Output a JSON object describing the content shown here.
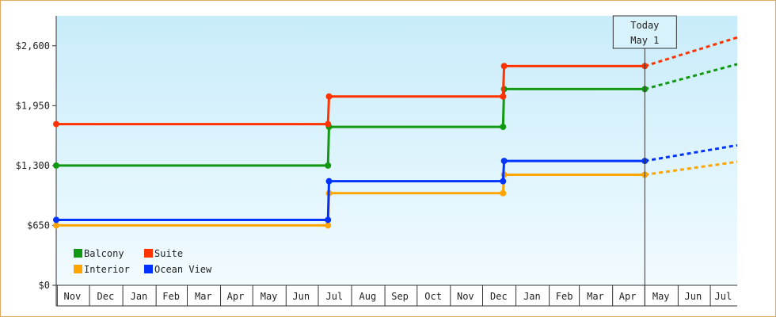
{
  "chart_data": {
    "type": "line",
    "step": true,
    "title": "",
    "xlabel": "",
    "ylabel": "",
    "ylim": [
      0,
      2925
    ],
    "yticks": [
      0,
      650,
      1300,
      1950,
      2600
    ],
    "ytick_labels": [
      "$0",
      "$650",
      "$1,300",
      "$1,950",
      "$2,600"
    ],
    "x_range": [
      "2023-10-31",
      "2025-07-26"
    ],
    "month_labels": [
      "Nov",
      "Dec",
      "Jan",
      "Feb",
      "Mar",
      "Apr",
      "May",
      "Jun",
      "Jul",
      "Aug",
      "Sep",
      "Oct",
      "Nov",
      "Dec",
      "Jan",
      "Feb",
      "Mar",
      "Apr",
      "May",
      "Jun",
      "Jul"
    ],
    "month_starts": [
      "2023-11-01",
      "2023-12-01",
      "2024-01-01",
      "2024-02-01",
      "2024-03-01",
      "2024-04-01",
      "2024-05-01",
      "2024-06-01",
      "2024-07-01",
      "2024-08-01",
      "2024-09-01",
      "2024-10-01",
      "2024-11-01",
      "2024-12-01",
      "2025-01-01",
      "2025-02-01",
      "2025-03-01",
      "2025-04-01",
      "2025-05-01",
      "2025-06-01",
      "2025-07-01"
    ],
    "month_label_positions": [
      "2023-11-15",
      "2023-12-16",
      "2024-01-16",
      "2024-02-15",
      "2024-03-16",
      "2024-04-15",
      "2024-05-16",
      "2024-06-15",
      "2024-07-16",
      "2024-08-16",
      "2024-09-15",
      "2024-10-16",
      "2024-11-15",
      "2024-12-16",
      "2025-01-16",
      "2025-02-15",
      "2025-03-16",
      "2025-04-15",
      "2025-05-16",
      "2025-06-15",
      "2025-07-13"
    ],
    "today": {
      "label_line1": "Today",
      "label_line2": "May 1",
      "date": "2025-05-01"
    },
    "grid": false,
    "legend_position": "bottom-left",
    "series": [
      {
        "name": "Balcony",
        "color": "#119911",
        "points": [
          [
            "2023-10-31",
            1300
          ],
          [
            "2024-07-10",
            1300
          ],
          [
            "2024-07-11",
            1720
          ],
          [
            "2024-12-20",
            1720
          ],
          [
            "2024-12-21",
            2130
          ],
          [
            "2025-05-01",
            2130
          ]
        ],
        "projection": [
          [
            "2025-05-01",
            2130
          ],
          [
            "2025-07-26",
            2400
          ]
        ]
      },
      {
        "name": "Suite",
        "color": "#ff3300",
        "points": [
          [
            "2023-10-31",
            1750
          ],
          [
            "2024-07-10",
            1750
          ],
          [
            "2024-07-11",
            2050
          ],
          [
            "2024-12-20",
            2050
          ],
          [
            "2024-12-21",
            2380
          ],
          [
            "2025-05-01",
            2380
          ]
        ],
        "projection": [
          [
            "2025-05-01",
            2380
          ],
          [
            "2025-07-26",
            2690
          ]
        ]
      },
      {
        "name": "Interior",
        "color": "#ffa500",
        "points": [
          [
            "2023-10-31",
            650
          ],
          [
            "2024-07-10",
            650
          ],
          [
            "2024-07-11",
            1000
          ],
          [
            "2024-12-20",
            1000
          ],
          [
            "2024-12-21",
            1200
          ],
          [
            "2025-05-01",
            1200
          ]
        ],
        "projection": [
          [
            "2025-05-01",
            1200
          ],
          [
            "2025-07-26",
            1340
          ]
        ]
      },
      {
        "name": "Ocean View",
        "color": "#0033ff",
        "points": [
          [
            "2023-10-31",
            710
          ],
          [
            "2024-07-10",
            710
          ],
          [
            "2024-07-11",
            1130
          ],
          [
            "2024-12-20",
            1130
          ],
          [
            "2024-12-21",
            1350
          ],
          [
            "2025-05-01",
            1350
          ]
        ],
        "projection": [
          [
            "2025-05-01",
            1350
          ],
          [
            "2025-07-26",
            1520
          ]
        ]
      }
    ]
  }
}
